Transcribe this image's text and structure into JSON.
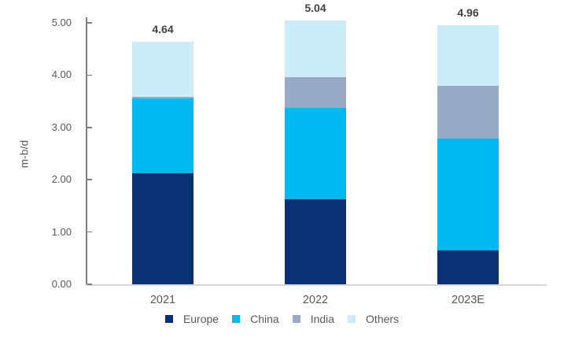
{
  "chart_data": {
    "type": "bar",
    "stacked": true,
    "title": "",
    "categories": [
      "2021",
      "2022",
      "2023E"
    ],
    "series": [
      {
        "name": "Europe",
        "color": "#0A3272",
        "values": [
          2.12,
          1.62,
          0.65
        ]
      },
      {
        "name": "China",
        "color": "#00B8F0",
        "values": [
          1.44,
          1.75,
          2.14
        ]
      },
      {
        "name": "India",
        "color": "#98AAC6",
        "values": [
          0.03,
          0.59,
          1.0
        ]
      },
      {
        "name": "Others",
        "color": "#CCEDF8",
        "values": [
          1.05,
          1.08,
          1.17
        ]
      }
    ],
    "totals": [
      4.64,
      5.04,
      4.96
    ],
    "total_labels": [
      "4.64",
      "5.04",
      "4.96"
    ],
    "ylabel": "m-b/d",
    "xlabel": "",
    "yticks": [
      0,
      1,
      2,
      3,
      4,
      5
    ],
    "ytick_labels": [
      "0.00",
      "1.00",
      "2.00",
      "3.00",
      "4.00",
      "5.00"
    ],
    "ylim": [
      0,
      5.05
    ],
    "grid": false,
    "legend_position": "bottom",
    "legend_entries": [
      "Europe",
      "China",
      "India",
      "Others"
    ]
  },
  "colors": {
    "background": "#FFFFFF",
    "axis_line": "#7F7F7F",
    "baseline": "#D9D9D9",
    "axis_text": "#595959",
    "data_label_text": "#404040"
  }
}
